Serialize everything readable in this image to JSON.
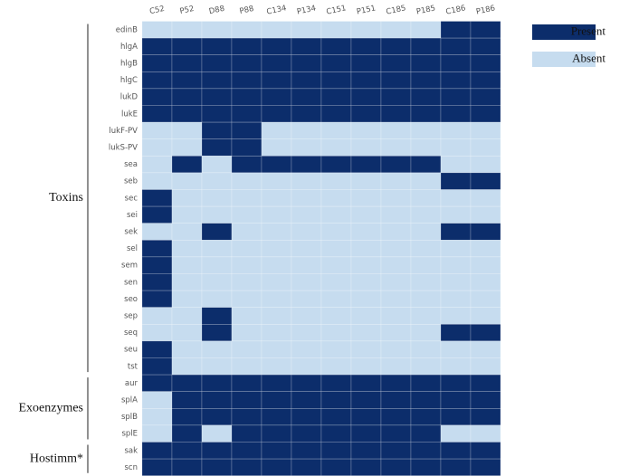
{
  "chart_data": {
    "type": "heatmap",
    "x": [
      "C52",
      "P52",
      "D88",
      "P88",
      "C134",
      "P134",
      "C151",
      "P151",
      "C185",
      "P185",
      "C186",
      "P186"
    ],
    "y": [
      "edinB",
      "hlgA",
      "hlgB",
      "hlgC",
      "lukD",
      "lukE",
      "lukF-PV",
      "lukS-PV",
      "sea",
      "seb",
      "sec",
      "sei",
      "sek",
      "sel",
      "sem",
      "sen",
      "seo",
      "sep",
      "seq",
      "seu",
      "tst",
      "aur",
      "splA",
      "splB",
      "splE",
      "sak",
      "scn"
    ],
    "values": [
      [
        0,
        0,
        0,
        0,
        0,
        0,
        0,
        0,
        0,
        0,
        1,
        1
      ],
      [
        1,
        1,
        1,
        1,
        1,
        1,
        1,
        1,
        1,
        1,
        1,
        1
      ],
      [
        1,
        1,
        1,
        1,
        1,
        1,
        1,
        1,
        1,
        1,
        1,
        1
      ],
      [
        1,
        1,
        1,
        1,
        1,
        1,
        1,
        1,
        1,
        1,
        1,
        1
      ],
      [
        1,
        1,
        1,
        1,
        1,
        1,
        1,
        1,
        1,
        1,
        1,
        1
      ],
      [
        1,
        1,
        1,
        1,
        1,
        1,
        1,
        1,
        1,
        1,
        1,
        1
      ],
      [
        0,
        0,
        1,
        1,
        0,
        0,
        0,
        0,
        0,
        0,
        0,
        0
      ],
      [
        0,
        0,
        1,
        1,
        0,
        0,
        0,
        0,
        0,
        0,
        0,
        0
      ],
      [
        0,
        1,
        0,
        1,
        1,
        1,
        1,
        1,
        1,
        1,
        0,
        0
      ],
      [
        0,
        0,
        0,
        0,
        0,
        0,
        0,
        0,
        0,
        0,
        1,
        1
      ],
      [
        1,
        0,
        0,
        0,
        0,
        0,
        0,
        0,
        0,
        0,
        0,
        0
      ],
      [
        1,
        0,
        0,
        0,
        0,
        0,
        0,
        0,
        0,
        0,
        0,
        0
      ],
      [
        0,
        0,
        1,
        0,
        0,
        0,
        0,
        0,
        0,
        0,
        1,
        1
      ],
      [
        1,
        0,
        0,
        0,
        0,
        0,
        0,
        0,
        0,
        0,
        0,
        0
      ],
      [
        1,
        0,
        0,
        0,
        0,
        0,
        0,
        0,
        0,
        0,
        0,
        0
      ],
      [
        1,
        0,
        0,
        0,
        0,
        0,
        0,
        0,
        0,
        0,
        0,
        0
      ],
      [
        1,
        0,
        0,
        0,
        0,
        0,
        0,
        0,
        0,
        0,
        0,
        0
      ],
      [
        0,
        0,
        1,
        0,
        0,
        0,
        0,
        0,
        0,
        0,
        0,
        0
      ],
      [
        0,
        0,
        1,
        0,
        0,
        0,
        0,
        0,
        0,
        0,
        1,
        1
      ],
      [
        1,
        0,
        0,
        0,
        0,
        0,
        0,
        0,
        0,
        0,
        0,
        0
      ],
      [
        1,
        0,
        0,
        0,
        0,
        0,
        0,
        0,
        0,
        0,
        0,
        0
      ],
      [
        1,
        1,
        1,
        1,
        1,
        1,
        1,
        1,
        1,
        1,
        1,
        1
      ],
      [
        0,
        1,
        1,
        1,
        1,
        1,
        1,
        1,
        1,
        1,
        1,
        1
      ],
      [
        0,
        1,
        1,
        1,
        1,
        1,
        1,
        1,
        1,
        1,
        1,
        1
      ],
      [
        0,
        1,
        0,
        1,
        1,
        1,
        1,
        1,
        1,
        1,
        0,
        0
      ],
      [
        1,
        1,
        1,
        1,
        1,
        1,
        1,
        1,
        1,
        1,
        1,
        1
      ],
      [
        1,
        1,
        1,
        1,
        1,
        1,
        1,
        1,
        1,
        1,
        1,
        1
      ]
    ],
    "legend": [
      {
        "name": "Present",
        "color": "#0c2d6b"
      },
      {
        "name": "Absent",
        "color": "#c6dcef"
      }
    ],
    "groups": [
      {
        "name": "Toxins",
        "start": 0,
        "end": 20
      },
      {
        "name": "Exoenzymes",
        "start": 21,
        "end": 24
      },
      {
        "name": "Hostimm*",
        "start": 25,
        "end": 26
      }
    ]
  }
}
